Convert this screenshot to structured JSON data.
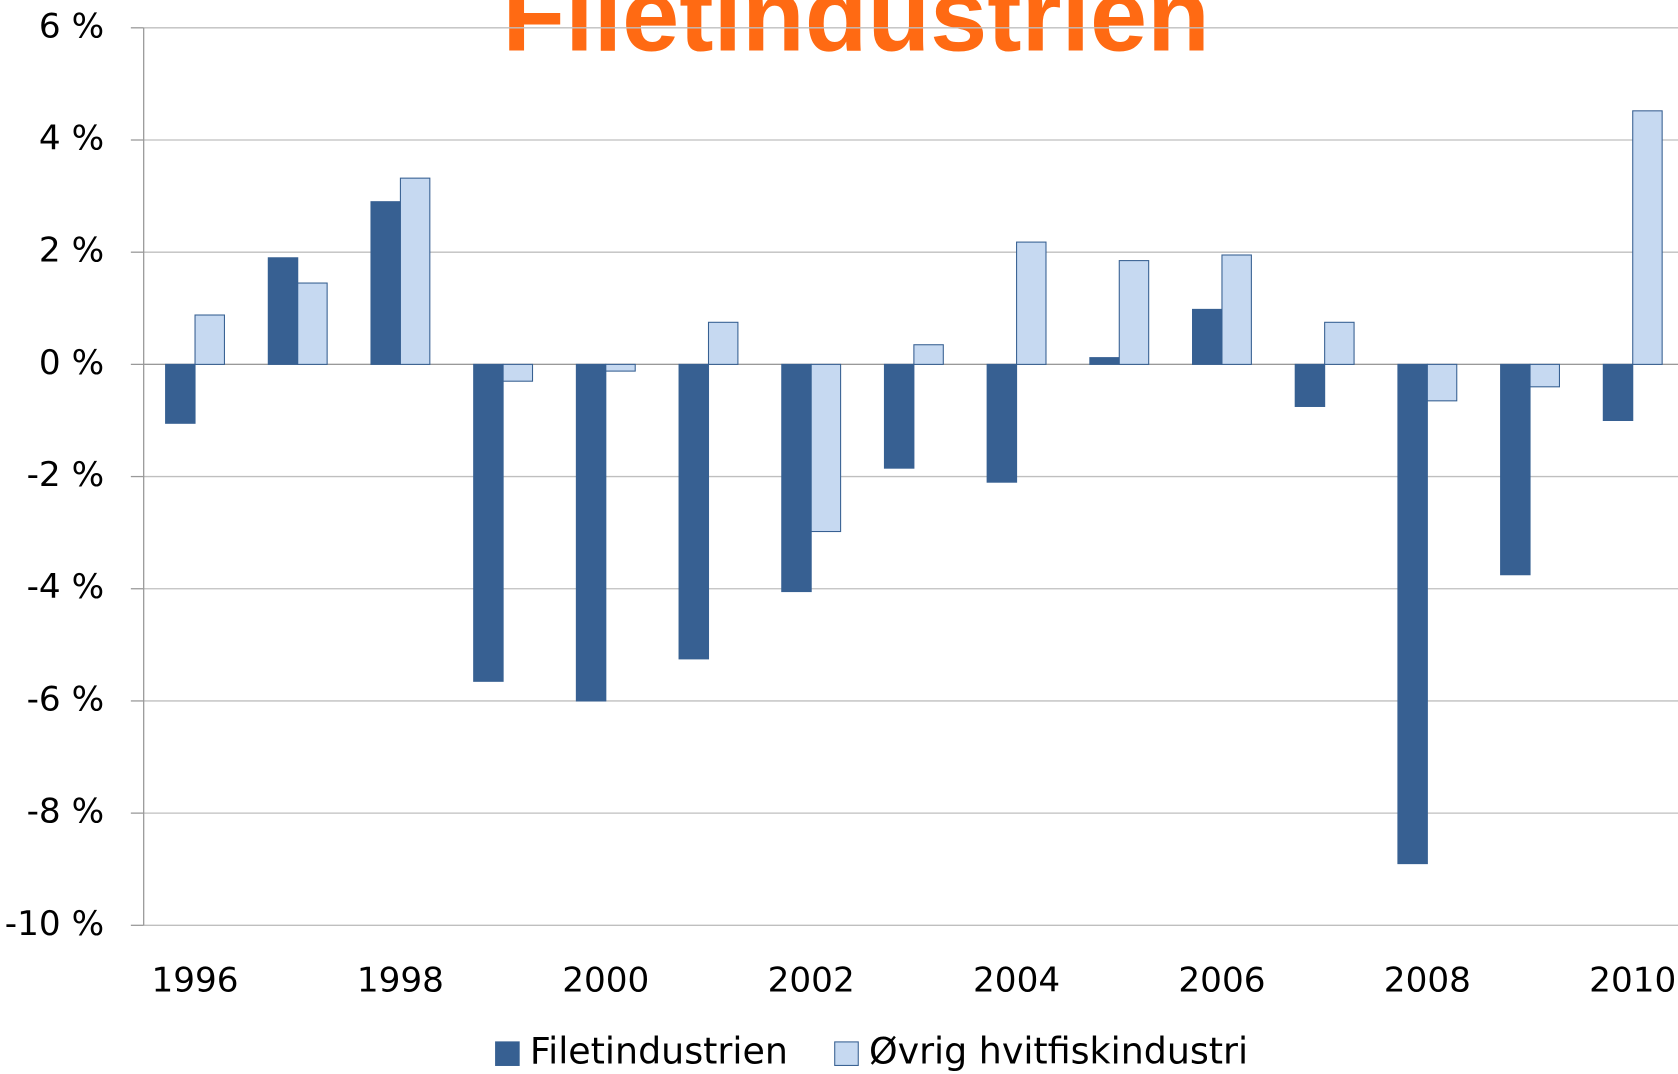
{
  "chart_data": {
    "type": "bar",
    "title": "Filetindustrien",
    "categories": [
      "1996",
      null,
      "1998",
      null,
      "2000",
      null,
      "2002",
      null,
      "2004",
      null,
      "2006",
      null,
      "2008",
      null,
      "2010"
    ],
    "series": [
      {
        "name": "Filetindustrien",
        "color": "#376092",
        "values": [
          -1.05,
          1.9,
          2.9,
          -5.65,
          -6.0,
          -5.25,
          -4.05,
          -1.85,
          -2.1,
          0.12,
          0.98,
          -0.75,
          -8.9,
          -3.75,
          -1.0
        ]
      },
      {
        "name": "Øvrig hvitfiskindustri",
        "color": "#c6d9f1",
        "values": [
          0.88,
          1.45,
          3.32,
          -0.3,
          -0.12,
          0.75,
          -2.98,
          0.35,
          2.18,
          1.85,
          1.95,
          0.75,
          -0.65,
          -0.4,
          4.52
        ]
      }
    ],
    "ylim": [
      -10,
      6
    ],
    "yticks": [
      {
        "value": 6,
        "label": "6 %"
      },
      {
        "value": 4,
        "label": "4 %"
      },
      {
        "value": 2,
        "label": "2 %"
      },
      {
        "value": 0,
        "label": "0 %"
      },
      {
        "value": -2,
        "label": "-2 %"
      },
      {
        "value": -4,
        "label": "-4 %"
      },
      {
        "value": -6,
        "label": "-6 %"
      },
      {
        "value": -8,
        "label": "-8 %"
      },
      {
        "value": -10,
        "label": "-10 %"
      }
    ],
    "grid": true,
    "legend": "bottom"
  }
}
